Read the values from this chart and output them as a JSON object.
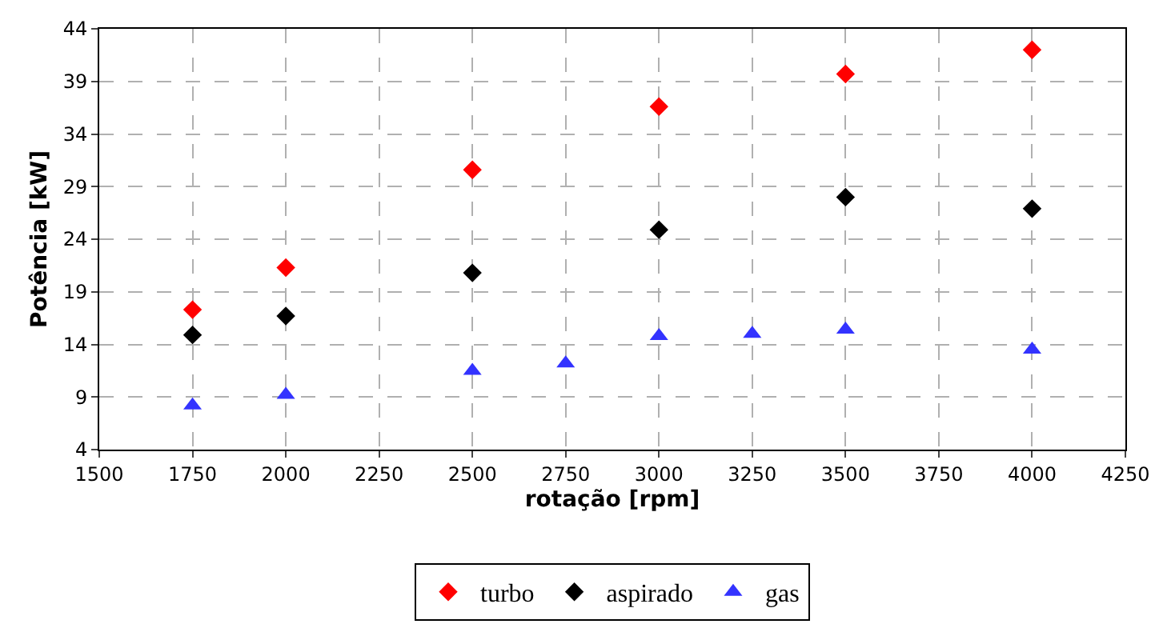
{
  "chart_data": {
    "type": "scatter",
    "xlabel": "rotação [rpm]",
    "ylabel": "Potência [kW]",
    "xlim": [
      1500,
      4250
    ],
    "xticks": [
      1500,
      1750,
      2000,
      2250,
      2500,
      2750,
      3000,
      3250,
      3500,
      3750,
      4000,
      4250
    ],
    "ylim": [
      4,
      44
    ],
    "yticks": [
      4,
      9,
      14,
      19,
      24,
      29,
      34,
      39,
      44
    ],
    "grid": true,
    "legend": "bottom",
    "series": [
      {
        "name": "turbo",
        "color": "#ff0000",
        "marker": "diamond",
        "x": [
          1750,
          2000,
          2500,
          3000,
          3500,
          4000
        ],
        "values": [
          17.3,
          21.3,
          30.6,
          36.6,
          39.7,
          42.0
        ]
      },
      {
        "name": "aspirado",
        "color": "#000000",
        "marker": "diamond",
        "x": [
          1750,
          2000,
          2500,
          3000,
          3500,
          4000
        ],
        "values": [
          14.9,
          16.7,
          20.8,
          24.9,
          28.0,
          26.9
        ]
      },
      {
        "name": "gas",
        "color": "#3333ff",
        "marker": "triangle",
        "x": [
          1750,
          2000,
          2500,
          2750,
          3000,
          3250,
          3500,
          4000
        ],
        "values": [
          8.2,
          9.2,
          11.5,
          12.2,
          14.8,
          15.0,
          15.4,
          13.5
        ]
      }
    ]
  }
}
